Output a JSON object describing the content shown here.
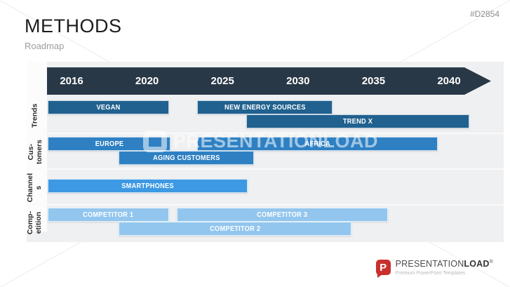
{
  "page": {
    "title": "METHODS",
    "subtitle": "Roadmap",
    "code": "#D2854"
  },
  "watermark": {
    "text": "PRESENTATIONLOAD"
  },
  "footer": {
    "brand_regular": "PRESENTATION",
    "brand_bold": "LOAD",
    "registered": "®",
    "tagline": "Premium PowerPoint Templates"
  },
  "colors": {
    "band": "#293847",
    "plot_bg": "#eff0f1",
    "bar_text": "#ffffff",
    "trends_bar": "#20618f",
    "customers_bar": "#2e80c3",
    "channels_bar": "#3d99e3",
    "competition_bar": "#93c6ee",
    "logo_red": "#c8302e"
  },
  "chart_data": {
    "type": "gantt",
    "title": "Roadmap",
    "axis": {
      "years": [
        2016,
        2020,
        2025,
        2030,
        2035,
        2040
      ],
      "range": [
        2014.4,
        2042
      ]
    },
    "rows": [
      {
        "label_lines": [
          "Trends"
        ],
        "color": "#20618f",
        "bars": [
          {
            "label": "VEGAN",
            "start": 2014.5,
            "end": 2022.2,
            "lane": 0
          },
          {
            "label": "NEW ENERGY SOURCES",
            "start": 2024.0,
            "end": 2032.6,
            "lane": 0
          },
          {
            "label": "TREND X",
            "start": 2027.1,
            "end": 2041.3,
            "lane": 1
          }
        ]
      },
      {
        "label_lines": [
          "Cus-",
          "tomers"
        ],
        "color": "#2e80c3",
        "bars": [
          {
            "label": "EUROPE",
            "start": 2014.5,
            "end": 2022.3,
            "lane": 0
          },
          {
            "label": "AFRICA",
            "start": 2024.0,
            "end": 2039.3,
            "lane": 0
          },
          {
            "label": "AGING CUSTOMERS",
            "start": 2019.0,
            "end": 2027.6,
            "lane": 1
          }
        ]
      },
      {
        "label_lines": [
          "Channel",
          "s"
        ],
        "color": "#3d99e3",
        "bars": [
          {
            "label": "SMARTPHONES",
            "start": 2014.5,
            "end": 2027.2,
            "lane": 0
          }
        ]
      },
      {
        "label_lines": [
          "Comp-",
          "etition"
        ],
        "color": "#93c6ee",
        "bars": [
          {
            "label": "COMPETITOR 1",
            "start": 2014.5,
            "end": 2022.2,
            "lane": 0
          },
          {
            "label": "COMPETITOR 3",
            "start": 2022.7,
            "end": 2036.1,
            "lane": 0
          },
          {
            "label": "COMPETITOR 2",
            "start": 2019.0,
            "end": 2033.8,
            "lane": 1
          }
        ]
      }
    ]
  }
}
